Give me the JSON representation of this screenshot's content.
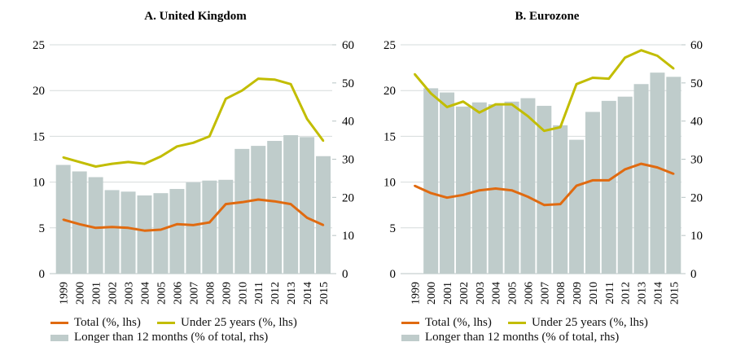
{
  "colors": {
    "total": "#e06a10",
    "under25": "#c2bd00",
    "bars": "#bfcccb",
    "grid": "#d6dcdc"
  },
  "chart_data": [
    {
      "type": "bar+line",
      "title": "A. United Kingdom",
      "left_axis": {
        "ylim": [
          0,
          25
        ],
        "ticks": [
          0,
          5,
          10,
          15,
          20,
          25
        ]
      },
      "right_axis": {
        "ylim": [
          0,
          60
        ],
        "ticks": [
          0,
          10,
          20,
          30,
          40,
          50,
          60
        ]
      },
      "grid": true,
      "categories": [
        "1999",
        "2000",
        "2001",
        "2002",
        "2003",
        "2004",
        "2005",
        "2006",
        "2007",
        "2008",
        "2009",
        "2010",
        "2011",
        "2012",
        "2013",
        "2014",
        "2015"
      ],
      "series": [
        {
          "name": "Longer than 12 months (% of total, rhs)",
          "kind": "bar",
          "axis": "right",
          "values": [
            28.5,
            26.8,
            25.3,
            21.9,
            21.5,
            20.5,
            21.1,
            22.2,
            23.9,
            24.4,
            24.6,
            32.7,
            33.5,
            34.8,
            36.3,
            35.8,
            30.8
          ]
        },
        {
          "name": "Under 25 years (%, lhs)",
          "kind": "line",
          "axis": "left",
          "values": [
            12.7,
            12.2,
            11.7,
            12.0,
            12.2,
            12.0,
            12.8,
            13.9,
            14.3,
            15.0,
            19.1,
            20.0,
            21.3,
            21.2,
            20.7,
            16.9,
            14.5
          ]
        },
        {
          "name": "Total (%, lhs)",
          "kind": "line",
          "axis": "left",
          "values": [
            5.9,
            5.4,
            5.0,
            5.1,
            5.0,
            4.7,
            4.8,
            5.4,
            5.3,
            5.6,
            7.6,
            7.8,
            8.1,
            7.9,
            7.6,
            6.1,
            5.3
          ]
        }
      ]
    },
    {
      "type": "bar+line",
      "title": "B. Eurozone",
      "left_axis": {
        "ylim": [
          0,
          25
        ],
        "ticks": [
          0,
          5,
          10,
          15,
          20,
          25
        ]
      },
      "right_axis": {
        "ylim": [
          0,
          60
        ],
        "ticks": [
          0,
          10,
          20,
          30,
          40,
          50,
          60
        ]
      },
      "grid": true,
      "categories": [
        "1999",
        "2000",
        "2001",
        "2002",
        "2003",
        "2004",
        "2005",
        "2006",
        "2007",
        "2008",
        "2009",
        "2010",
        "2011",
        "2012",
        "2013",
        "2014",
        "2015"
      ],
      "series": [
        {
          "name": "Longer than 12 months (% of total, rhs)",
          "kind": "bar",
          "axis": "right",
          "values": [
            null,
            48.6,
            47.5,
            43.8,
            44.9,
            44.4,
            45.1,
            46.0,
            44.0,
            38.9,
            35.1,
            42.4,
            45.3,
            46.4,
            49.7,
            52.7,
            51.6
          ]
        },
        {
          "name": "Under 25 years (%, lhs)",
          "kind": "line",
          "axis": "left",
          "values": [
            21.8,
            19.7,
            18.2,
            18.8,
            17.6,
            18.5,
            18.5,
            17.2,
            15.6,
            16.0,
            20.7,
            21.4,
            21.3,
            23.6,
            24.4,
            23.8,
            22.4
          ]
        },
        {
          "name": "Total (%, lhs)",
          "kind": "line",
          "axis": "left",
          "values": [
            9.6,
            8.8,
            8.3,
            8.6,
            9.1,
            9.3,
            9.1,
            8.4,
            7.5,
            7.6,
            9.6,
            10.2,
            10.2,
            11.4,
            12.0,
            11.6,
            10.9
          ]
        }
      ]
    }
  ],
  "legend": {
    "total": "Total (%, lhs)",
    "under25": "Under 25 years (%, lhs)",
    "bars": "Longer than 12 months (% of total, rhs)"
  }
}
